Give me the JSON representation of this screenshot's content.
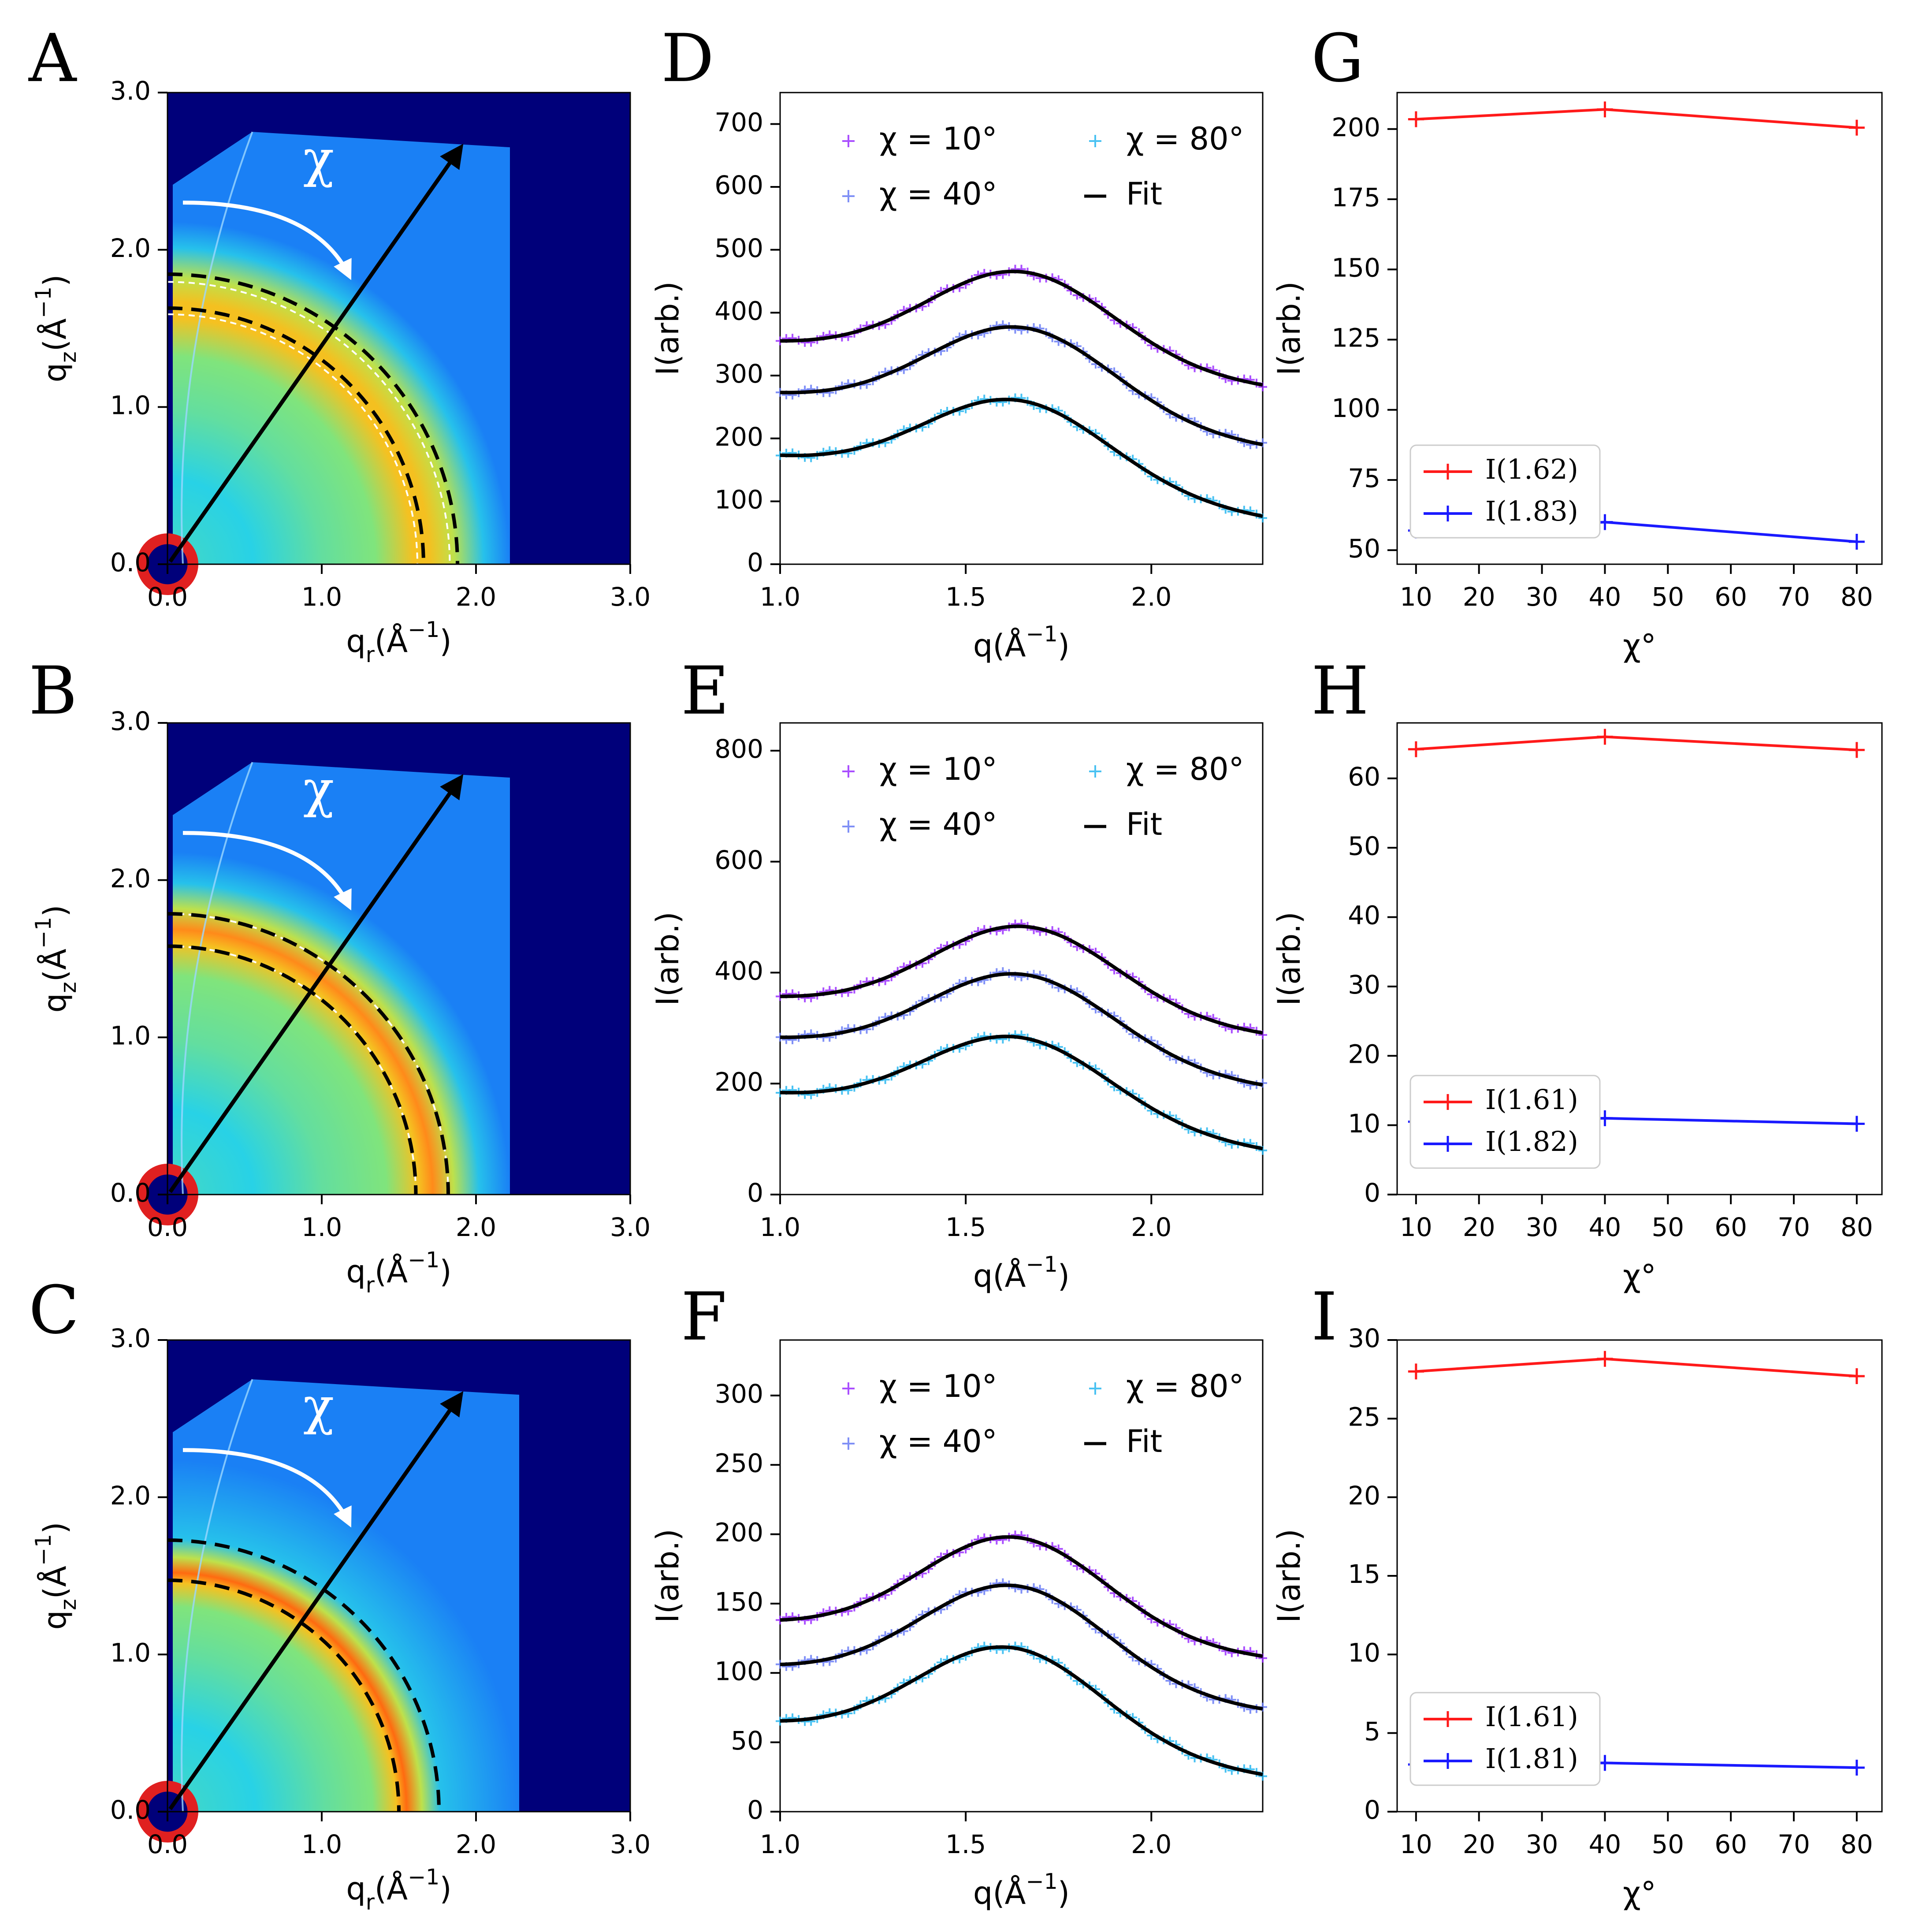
{
  "panel_letters": [
    "A",
    "B",
    "C",
    "D",
    "E",
    "F",
    "G",
    "H",
    "I"
  ],
  "colors": {
    "chi10": "#9b30ff",
    "chi40": "#6a7df5",
    "chi80": "#2ab7f0",
    "fit": "#000000",
    "red": "#ff1a1a",
    "blue": "#1a1aff",
    "map_bg": "#00007a"
  },
  "chart_data": [
    {
      "id": "A",
      "type": "heatmap",
      "xlabel": "q_r(Å^-1)",
      "ylabel": "q_z(Å^-1)",
      "xlim": [
        0,
        3.0
      ],
      "ylim": [
        0,
        3.0
      ],
      "xticks": [
        "0.0",
        "1.0",
        "2.0",
        "3.0"
      ],
      "yticks": [
        "0.0",
        "1.0",
        "2.0",
        "3.0"
      ],
      "annotation": "χ",
      "detector_qmax": 2.22,
      "white_rings": [
        1.62,
        1.83
      ],
      "black_rings": [
        1.66,
        1.88
      ],
      "halo": {
        "q0": 1.7,
        "width": 0.35,
        "peak_color": "#f4c020"
      }
    },
    {
      "id": "B",
      "type": "heatmap",
      "xlabel": "q_r(Å^-1)",
      "ylabel": "q_z(Å^-1)",
      "xlim": [
        0,
        3.0
      ],
      "ylim": [
        0,
        3.0
      ],
      "xticks": [
        "0.0",
        "1.0",
        "2.0",
        "3.0"
      ],
      "yticks": [
        "0.0",
        "1.0",
        "2.0",
        "3.0"
      ],
      "annotation": "χ",
      "detector_qmax": 2.22,
      "white_rings": [
        1.61,
        1.82
      ],
      "black_rings": [
        1.61,
        1.82
      ],
      "halo": {
        "q0": 1.72,
        "width": 0.3,
        "peak_color": "#ff8a1a"
      }
    },
    {
      "id": "C",
      "type": "heatmap",
      "xlabel": "q_r(Å^-1)",
      "ylabel": "q_z(Å^-1)",
      "xlim": [
        0,
        3.0
      ],
      "ylim": [
        0,
        3.0
      ],
      "xticks": [
        "0.0",
        "1.0",
        "2.0",
        "3.0"
      ],
      "yticks": [
        "0.0",
        "1.0",
        "2.0",
        "3.0"
      ],
      "annotation": "χ",
      "detector_qmax": 2.28,
      "white_rings": [],
      "black_rings": [
        1.5,
        1.76
      ],
      "halo": {
        "q0": 1.55,
        "width": 0.22,
        "peak_color": "#ff6a10"
      }
    },
    {
      "id": "D",
      "type": "scatter",
      "xlabel": "q(Å^-1)",
      "ylabel": "I(arb.)",
      "xlim": [
        1.0,
        2.3
      ],
      "ylim": [
        0,
        750
      ],
      "xticks": [
        1.0,
        1.5,
        2.0
      ],
      "yticks": [
        0,
        100,
        200,
        300,
        400,
        500,
        600,
        700
      ],
      "legend": {
        "placement": "top",
        "entries": [
          "χ = 10°",
          "χ = 80°",
          "χ = 40°",
          "Fit"
        ]
      },
      "series": [
        {
          "name": "χ = 10°",
          "base_left": 350,
          "base_right": 280,
          "amp": 150,
          "center": 1.65,
          "sigma": 0.25
        },
        {
          "name": "χ = 40°",
          "base_left": 268,
          "base_right": 185,
          "amp": 150,
          "center": 1.65,
          "sigma": 0.25
        },
        {
          "name": "χ = 80°",
          "base_left": 168,
          "base_right": 72,
          "amp": 140,
          "center": 1.64,
          "sigma": 0.25
        }
      ]
    },
    {
      "id": "E",
      "type": "scatter",
      "xlabel": "q(Å^-1)",
      "ylabel": "I(arb.)",
      "xlim": [
        1.0,
        2.3
      ],
      "ylim": [
        0,
        850
      ],
      "xticks": [
        1.0,
        1.5,
        2.0
      ],
      "yticks": [
        0,
        200,
        400,
        600,
        800
      ],
      "legend": {
        "placement": "top",
        "entries": [
          "χ = 10°",
          "χ = 80°",
          "χ = 40°",
          "Fit"
        ]
      },
      "series": [
        {
          "name": "χ = 10°",
          "base_left": 352,
          "base_right": 285,
          "amp": 165,
          "center": 1.66,
          "sigma": 0.25
        },
        {
          "name": "χ = 40°",
          "base_left": 278,
          "base_right": 192,
          "amp": 162,
          "center": 1.65,
          "sigma": 0.25
        },
        {
          "name": "χ = 80°",
          "base_left": 178,
          "base_right": 78,
          "amp": 155,
          "center": 1.64,
          "sigma": 0.25
        }
      ]
    },
    {
      "id": "F",
      "type": "scatter",
      "xlabel": "q(Å^-1)",
      "ylabel": "I(arb.)",
      "xlim": [
        1.0,
        2.3
      ],
      "ylim": [
        0,
        340
      ],
      "xticks": [
        1.0,
        1.5,
        2.0
      ],
      "yticks": [
        0,
        50,
        100,
        150,
        200,
        250,
        300
      ],
      "legend": {
        "placement": "top",
        "entries": [
          "χ = 10°",
          "χ = 80°",
          "χ = 40°",
          "Fit"
        ]
      },
      "series": [
        {
          "name": "χ = 10°",
          "base_left": 135,
          "base_right": 110,
          "amp": 75,
          "center": 1.63,
          "sigma": 0.25
        },
        {
          "name": "χ = 40°",
          "base_left": 103,
          "base_right": 72,
          "amp": 75,
          "center": 1.63,
          "sigma": 0.25
        },
        {
          "name": "χ = 80°",
          "base_left": 62,
          "base_right": 25,
          "amp": 74,
          "center": 1.62,
          "sigma": 0.25
        }
      ]
    },
    {
      "id": "G",
      "type": "line",
      "xlabel": "χ°",
      "ylabel": "I(arb.)",
      "xlim": [
        7,
        84
      ],
      "ylim": [
        45,
        213
      ],
      "xticks": [
        10,
        20,
        30,
        40,
        50,
        60,
        70,
        80
      ],
      "yticks": [
        50,
        75,
        100,
        125,
        150,
        175,
        200
      ],
      "legend": {
        "placement": "bottom-left"
      },
      "x": [
        10,
        40,
        80
      ],
      "series": [
        {
          "name": "I(1.62)",
          "color": "red",
          "values": [
            203.5,
            207,
            200.5
          ]
        },
        {
          "name": "I(1.83)",
          "color": "blue",
          "values": [
            57,
            60,
            53
          ]
        }
      ]
    },
    {
      "id": "H",
      "type": "line",
      "xlabel": "χ°",
      "ylabel": "I(arb.)",
      "xlim": [
        7,
        84
      ],
      "ylim": [
        0,
        68
      ],
      "xticks": [
        10,
        20,
        30,
        40,
        50,
        60,
        70,
        80
      ],
      "yticks": [
        0,
        10,
        20,
        30,
        40,
        50,
        60
      ],
      "legend": {
        "placement": "bottom-left"
      },
      "x": [
        10,
        40,
        80
      ],
      "series": [
        {
          "name": "I(1.61)",
          "color": "red",
          "values": [
            64.2,
            66,
            64.1
          ]
        },
        {
          "name": "I(1.82)",
          "color": "blue",
          "values": [
            10.5,
            11,
            10.2
          ]
        }
      ]
    },
    {
      "id": "I",
      "type": "line",
      "xlabel": "χ°",
      "ylabel": "I(arb.)",
      "xlim": [
        7,
        84
      ],
      "ylim": [
        0,
        30
      ],
      "xticks": [
        10,
        20,
        30,
        40,
        50,
        60,
        70,
        80
      ],
      "yticks": [
        0,
        5,
        10,
        15,
        20,
        25,
        30
      ],
      "legend": {
        "placement": "bottom-left"
      },
      "x": [
        10,
        40,
        80
      ],
      "series": [
        {
          "name": "I(1.61)",
          "color": "red",
          "values": [
            28,
            28.8,
            27.7
          ]
        },
        {
          "name": "I(1.81)",
          "color": "blue",
          "values": [
            3.0,
            3.1,
            2.8
          ]
        }
      ]
    }
  ]
}
